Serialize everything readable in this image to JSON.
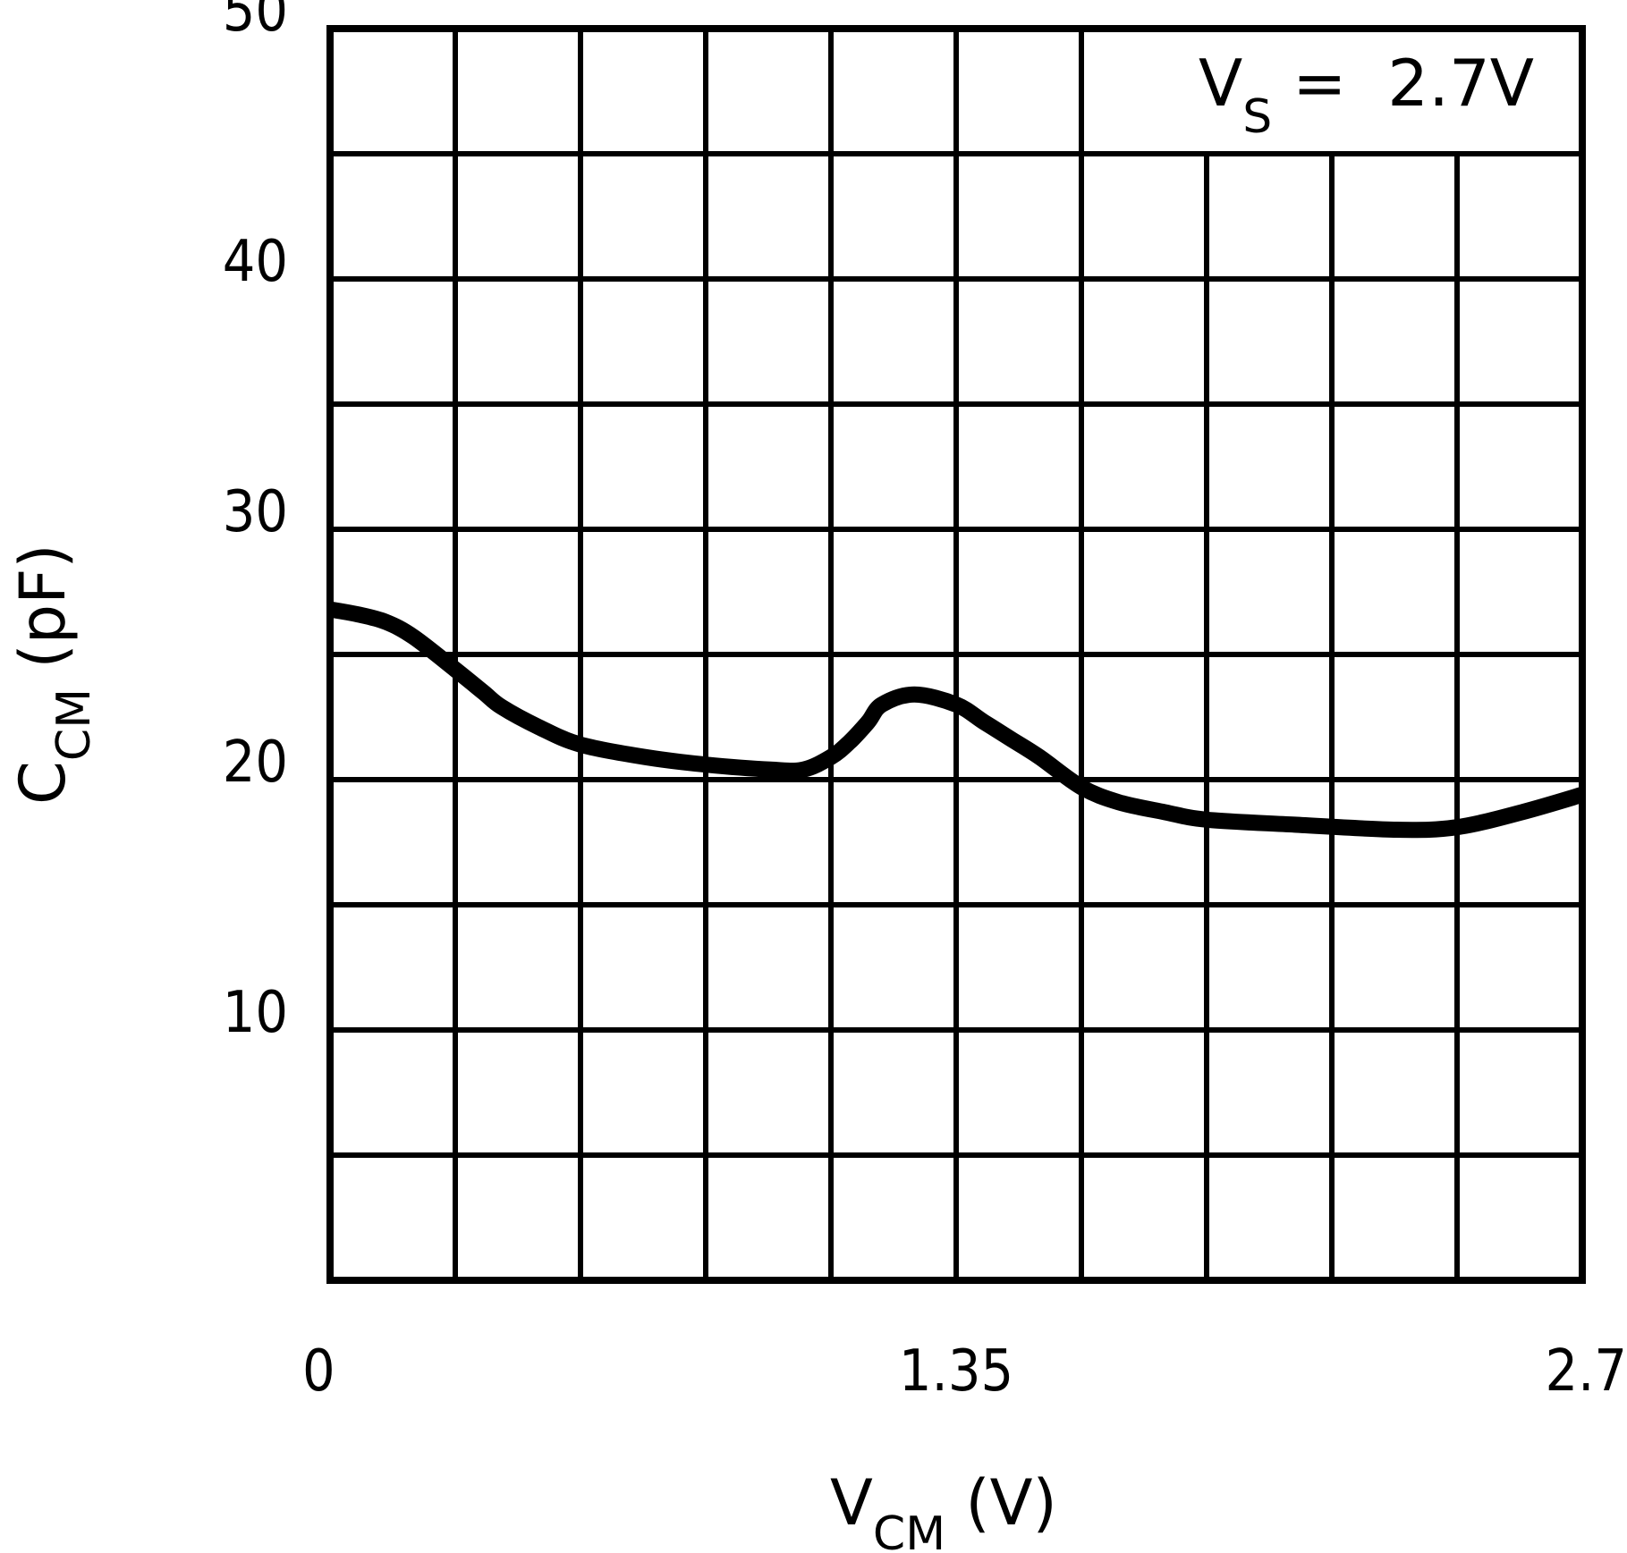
{
  "chart_data": {
    "type": "line",
    "title": "",
    "xlabel": "V_CM (V)",
    "ylabel": "C_CM (pF)",
    "xlim": [
      0,
      2.7
    ],
    "ylim": [
      0,
      50
    ],
    "grid": true,
    "x_ticks": [
      0,
      1.35,
      2.7
    ],
    "x_tick_labels": [
      "0",
      "1.35",
      "2.7"
    ],
    "y_ticks": [
      10,
      20,
      30,
      40,
      50
    ],
    "y_tick_labels": [
      "10",
      "20",
      "30",
      "40",
      "50"
    ],
    "x_grid_divisions": 10,
    "y_grid_divisions": 10,
    "annotations": [
      {
        "text": "V_S = 2.7V",
        "position": "top-right"
      }
    ],
    "legend": null,
    "series": [
      {
        "name": "C_CM",
        "x": [
          0.0,
          0.06,
          0.12,
          0.18,
          0.27,
          0.33,
          0.37,
          0.45,
          0.54,
          0.68,
          0.81,
          0.95,
          1.02,
          1.08,
          1.12,
          1.16,
          1.19,
          1.26,
          1.35,
          1.41,
          1.47,
          1.53,
          1.62,
          1.7,
          1.8,
          1.89,
          2.08,
          2.3,
          2.43,
          2.57,
          2.7
        ],
        "y": [
          26.8,
          26.6,
          26.3,
          25.7,
          24.4,
          23.5,
          22.9,
          22.1,
          21.4,
          20.9,
          20.6,
          20.4,
          20.4,
          20.9,
          21.5,
          22.3,
          23.0,
          23.4,
          23.0,
          22.3,
          21.6,
          20.9,
          19.7,
          19.1,
          18.7,
          18.4,
          18.2,
          18.0,
          18.1,
          18.7,
          19.4
        ]
      }
    ]
  },
  "labels": {
    "y_axis_main": "C",
    "y_axis_sub": "CM",
    "y_axis_unit": " (pF)",
    "x_axis_main": "V",
    "x_axis_sub": "CM",
    "x_axis_unit": " (V)",
    "annotation_main": "V",
    "annotation_sub": "S",
    "annotation_rest": " =  2.7V"
  },
  "style": {
    "line_color": "#000000",
    "grid_color": "#000000",
    "background": "#ffffff"
  }
}
